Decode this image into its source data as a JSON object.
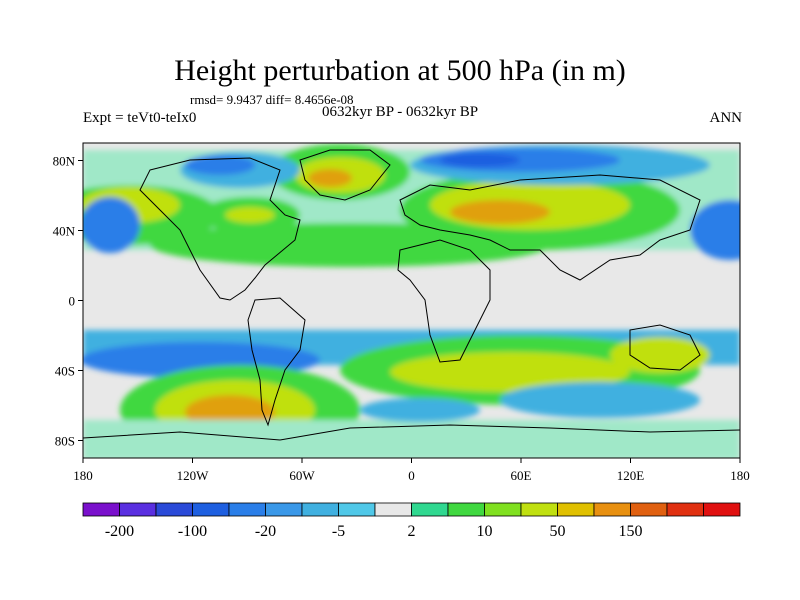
{
  "title": "Height perturbation at 500 hPa (in m)",
  "stats": "rmsd= 9.9437 diff= 8.4656e-08",
  "left_label": "Expt = teVt0-teIx0",
  "center_label": "0632kyr BP - 0632kyr BP",
  "right_label": "ANN",
  "lat_ticks": [
    {
      "label": "80N",
      "lat": 80
    },
    {
      "label": "40N",
      "lat": 40
    },
    {
      "label": "0",
      "lat": 0
    },
    {
      "label": "40S",
      "lat": -40
    },
    {
      "label": "80S",
      "lat": -80
    }
  ],
  "lon_ticks": [
    {
      "label": "180",
      "lon": -180
    },
    {
      "label": "120W",
      "lon": -120
    },
    {
      "label": "60W",
      "lon": -60
    },
    {
      "label": "0",
      "lon": 0
    },
    {
      "label": "60E",
      "lon": 60
    },
    {
      "label": "120E",
      "lon": 120
    },
    {
      "label": "180",
      "lon": 180
    }
  ],
  "colorbar": {
    "colors": [
      "#7a10cc",
      "#5a2fe0",
      "#2a4ad8",
      "#1e5fe0",
      "#2a7ee8",
      "#3a98e8",
      "#40b0e0",
      "#50c8e8",
      "#e8e8e8",
      "#30d890",
      "#40d840",
      "#80e020",
      "#c0e010",
      "#e0c000",
      "#e89010",
      "#e06010",
      "#e03010",
      "#e01010"
    ],
    "labels": [
      "-200",
      "-100",
      "-20",
      "-5",
      "2",
      "10",
      "50",
      "150"
    ]
  },
  "palette": {
    "neutral": "#e8e8e8",
    "pale_teal": "#a0e8c8",
    "green": "#40d840",
    "yellow_green": "#c0e010",
    "orange": "#e0a010",
    "light_blue": "#40b0e0",
    "blue": "#2a7ee8",
    "dark_blue": "#1e5fe0"
  }
}
